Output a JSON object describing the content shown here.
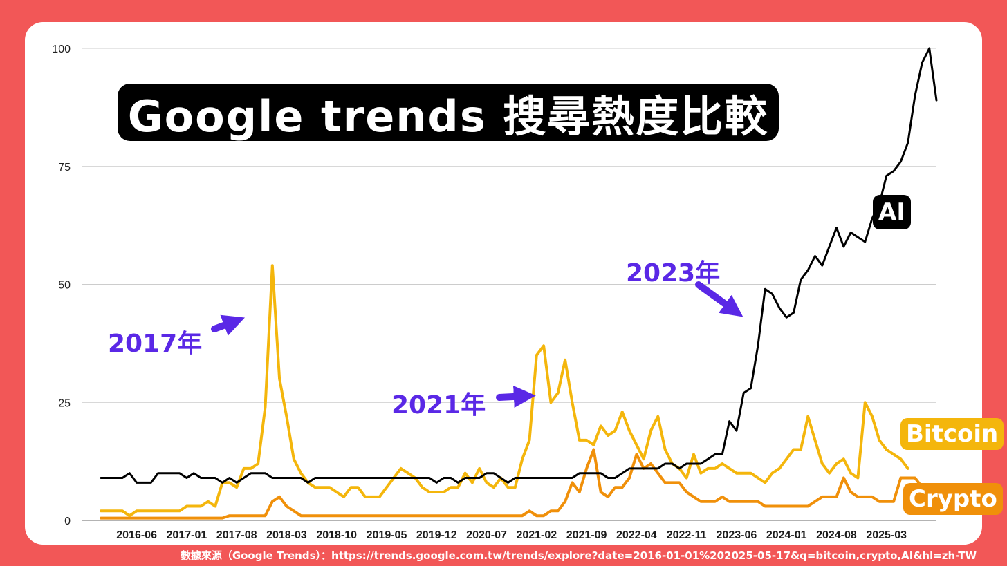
{
  "colors": {
    "background": "#f25757",
    "ai": "#000000",
    "bitcoin": "#f4b60c",
    "crypto": "#f0900a",
    "annotation": "#5a28e6"
  },
  "title": "Google  trends  搜尋熱度比較",
  "labels": {
    "ai": "AI",
    "bitcoin": "Bitcoin",
    "crypto": "Crypto"
  },
  "annotations": {
    "a2017": "2017年",
    "a2021": "2021年",
    "a2023": "2023年"
  },
  "source": "數據來源（Google Trends）：https://trends.google.com.tw/trends/explore?date=2016-01-01%202025-05-17&q=bitcoin,crypto,AI&hl=zh-TW",
  "chart_data": {
    "type": "line",
    "ylim": [
      0,
      100
    ],
    "yticks": [
      "0",
      "25",
      "50",
      "75",
      "100"
    ],
    "xticks": [
      "2016-06",
      "2017-01",
      "2017-08",
      "2018-03",
      "2018-10",
      "2019-05",
      "2019-12",
      "2020-07",
      "2021-02",
      "2021-09",
      "2022-04",
      "2022-11",
      "2023-06",
      "2024-01",
      "2024-08",
      "2025-03"
    ],
    "x_start": "2016-01",
    "x_end": "2025-05",
    "grid": true,
    "series": [
      {
        "name": "AI",
        "color": "#000000",
        "values": [
          9,
          9,
          9,
          9,
          10,
          8,
          8,
          8,
          10,
          10,
          10,
          10,
          9,
          10,
          9,
          9,
          9,
          8,
          9,
          8,
          9,
          10,
          10,
          10,
          9,
          9,
          9,
          9,
          9,
          8,
          9,
          9,
          9,
          9,
          9,
          9,
          9,
          9,
          9,
          9,
          9,
          9,
          9,
          9,
          9,
          9,
          9,
          8,
          9,
          9,
          8,
          9,
          9,
          9,
          10,
          10,
          9,
          8,
          9,
          9,
          9,
          9,
          9,
          9,
          9,
          9,
          9,
          10,
          10,
          10,
          10,
          9,
          9,
          10,
          11,
          11,
          11,
          11,
          11,
          12,
          12,
          11,
          12,
          12,
          12,
          13,
          14,
          14,
          21,
          19,
          27,
          28,
          37,
          49,
          48,
          45,
          43,
          44,
          51,
          53,
          56,
          54,
          58,
          62,
          58,
          61,
          60,
          59,
          64,
          67,
          73,
          74,
          76,
          80,
          90,
          97,
          100,
          89
        ]
      },
      {
        "name": "Bitcoin",
        "color": "#f4b60c",
        "values": [
          2,
          2,
          2,
          2,
          1,
          2,
          2,
          2,
          2,
          2,
          2,
          2,
          3,
          3,
          3,
          4,
          3,
          8,
          8,
          7,
          11,
          11,
          12,
          24,
          54,
          30,
          22,
          13,
          10,
          8,
          7,
          7,
          7,
          6,
          5,
          7,
          7,
          5,
          5,
          5,
          7,
          9,
          11,
          10,
          9,
          7,
          6,
          6,
          6,
          7,
          7,
          10,
          8,
          11,
          8,
          7,
          9,
          7,
          7,
          13,
          17,
          35,
          37,
          25,
          27,
          34,
          25,
          17,
          17,
          16,
          20,
          18,
          19,
          23,
          19,
          16,
          13,
          19,
          22,
          15,
          12,
          11,
          9,
          14,
          10,
          11,
          11,
          12,
          11,
          10,
          10,
          10,
          9,
          8,
          10,
          11,
          13,
          15,
          15,
          22,
          17,
          12,
          10,
          12,
          13,
          10,
          9,
          25,
          22,
          17,
          15,
          14,
          13,
          11
        ]
      },
      {
        "name": "Crypto",
        "color": "#f0900a",
        "values": [
          0.5,
          0.5,
          0.5,
          0.5,
          0.5,
          0.5,
          0.5,
          0.5,
          0.5,
          0.5,
          0.5,
          0.5,
          0.5,
          0.5,
          0.5,
          0.5,
          0.5,
          0.5,
          1,
          1,
          1,
          1,
          1,
          1,
          4,
          5,
          3,
          2,
          1,
          1,
          1,
          1,
          1,
          1,
          1,
          1,
          1,
          1,
          1,
          1,
          1,
          1,
          1,
          1,
          1,
          1,
          1,
          1,
          1,
          1,
          1,
          1,
          1,
          1,
          1,
          1,
          1,
          1,
          1,
          1,
          2,
          1,
          1,
          2,
          2,
          4,
          8,
          6,
          11,
          15,
          6,
          5,
          7,
          7,
          9,
          14,
          11,
          12,
          10,
          8,
          8,
          8,
          6,
          5,
          4,
          4,
          4,
          5,
          4,
          4,
          4,
          4,
          4,
          3,
          3,
          3,
          3,
          3,
          3,
          3,
          4,
          5,
          5,
          5,
          9,
          6,
          5,
          5,
          5,
          4,
          4,
          4,
          9,
          9,
          9,
          7
        ]
      }
    ]
  }
}
